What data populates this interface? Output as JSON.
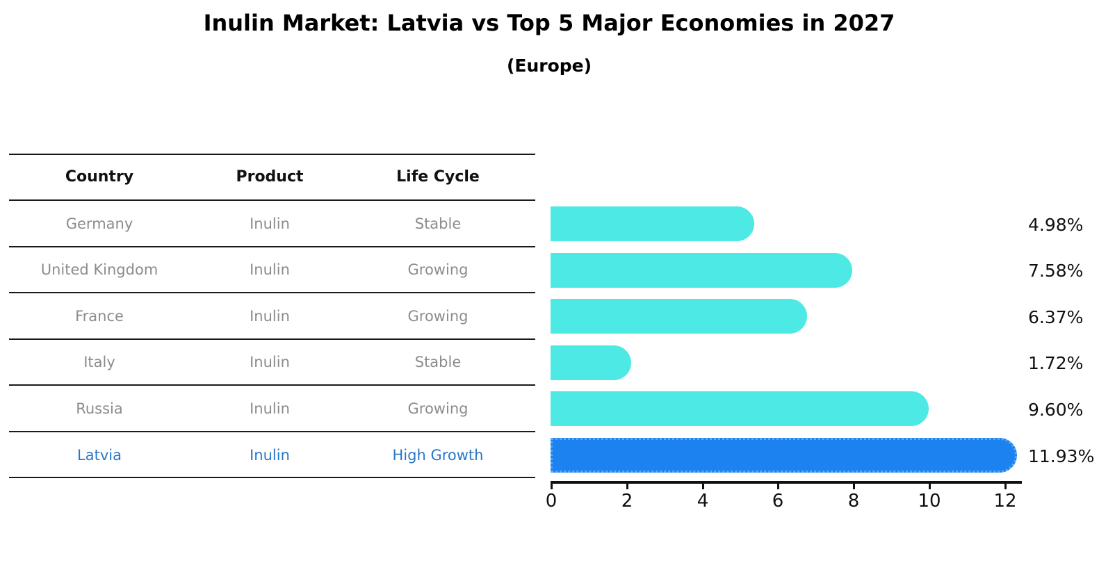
{
  "title": "Inulin Market: Latvia vs Top 5 Major Economies in 2027",
  "subtitle": "(Europe)",
  "table": {
    "headers": {
      "country": "Country",
      "product": "Product",
      "life_cycle": "Life Cycle"
    },
    "rows": [
      {
        "country": "Germany",
        "product": "Inulin",
        "life_cycle": "Stable",
        "value_label": "4.98%"
      },
      {
        "country": "United Kingdom",
        "product": "Inulin",
        "life_cycle": "Growing",
        "value_label": "7.58%"
      },
      {
        "country": "France",
        "product": "Inulin",
        "life_cycle": "Growing",
        "value_label": "6.37%"
      },
      {
        "country": "Italy",
        "product": "Inulin",
        "life_cycle": "Stable",
        "value_label": "1.72%"
      },
      {
        "country": "Russia",
        "product": "Inulin",
        "life_cycle": "Growing",
        "value_label": "9.60%"
      },
      {
        "country": "Latvia",
        "product": "Inulin",
        "life_cycle": "High Growth",
        "value_label": "11.93%"
      }
    ]
  },
  "chart_data": {
    "type": "bar",
    "orientation": "horizontal",
    "title": "Inulin Market: Latvia vs Top 5 Major Economies in 2027",
    "subtitle": "(Europe)",
    "categories": [
      "Germany",
      "United Kingdom",
      "France",
      "Italy",
      "Russia",
      "Latvia"
    ],
    "values": [
      4.98,
      7.58,
      6.37,
      1.72,
      9.6,
      11.93
    ],
    "data_labels": [
      "4.98%",
      "7.58%",
      "6.37%",
      "1.72%",
      "9.60%",
      "11.93%"
    ],
    "x_ticks": [
      0,
      2,
      4,
      6,
      8,
      10,
      12
    ],
    "xlim": [
      0,
      12.5
    ],
    "grid": false,
    "legend": false,
    "bar_color": "#4DE9E4",
    "highlight_bar_color": "#1B82F0",
    "highlight_index": 5,
    "highlight_text_color": "#2878C8",
    "row_text_color": "#8C8C8C"
  }
}
